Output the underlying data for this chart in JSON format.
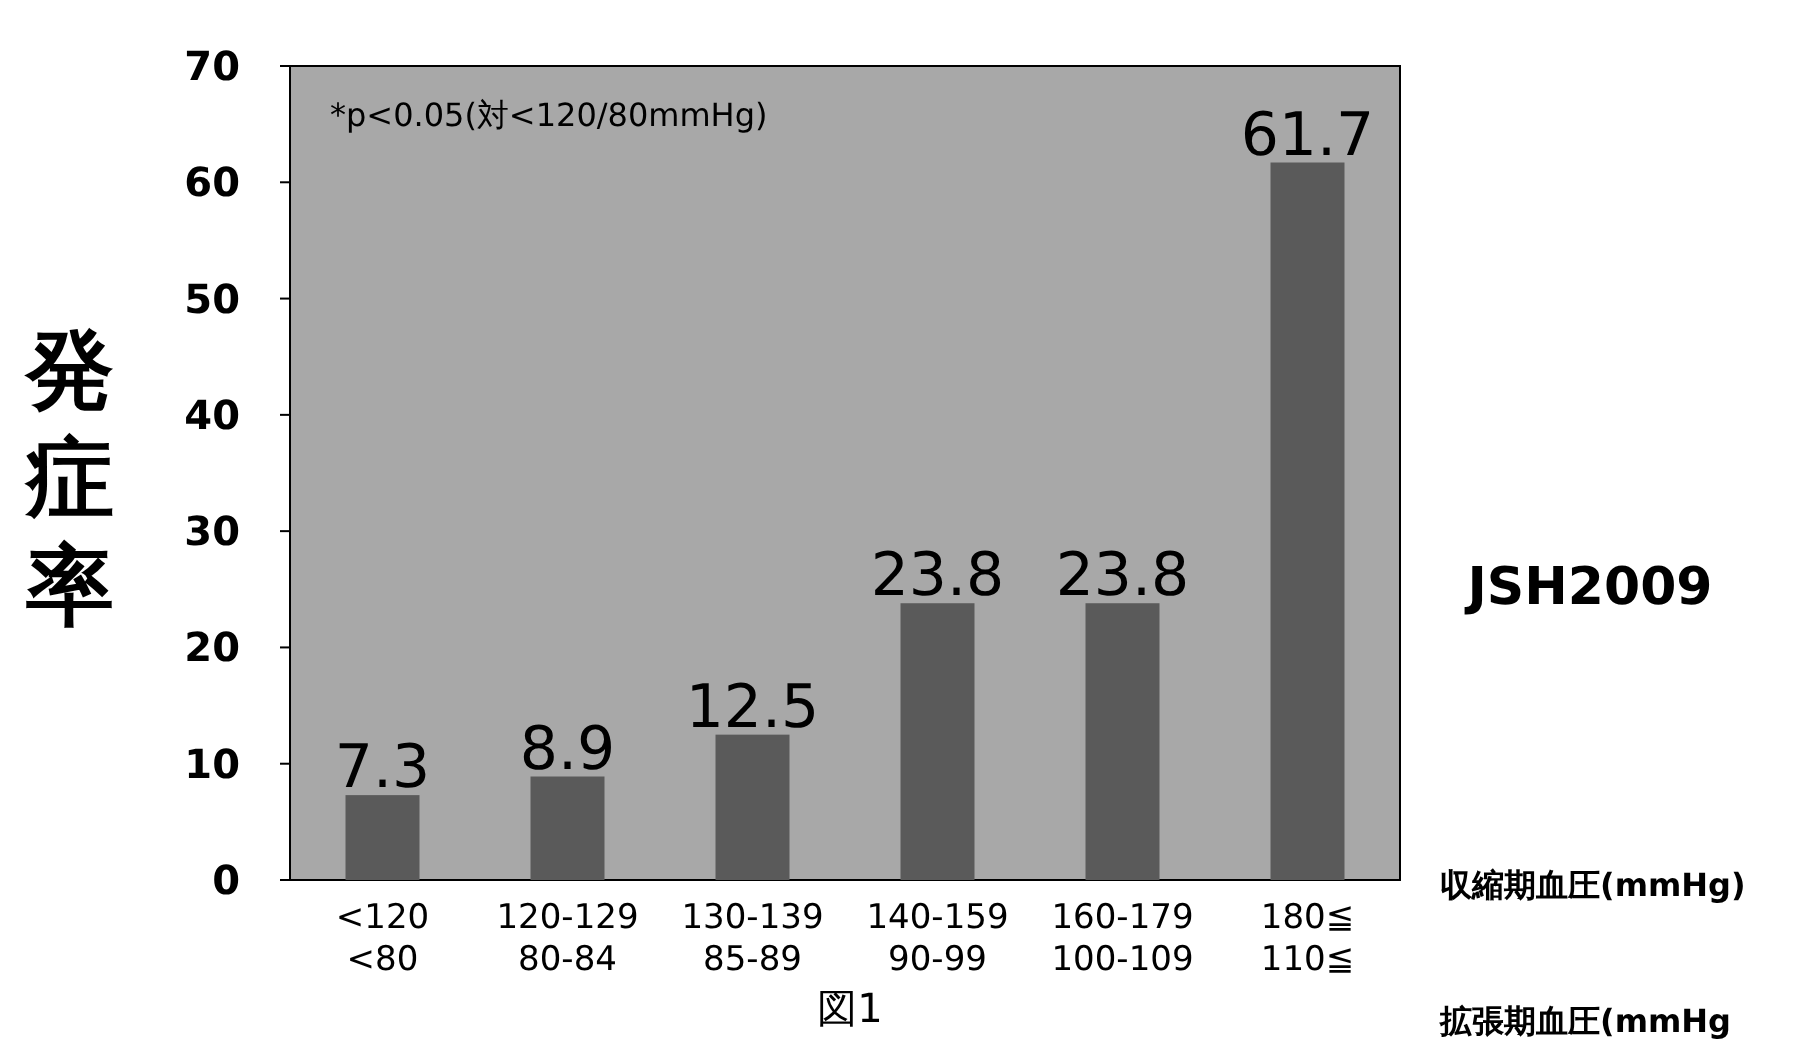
{
  "chart_data": {
    "type": "bar",
    "ylabel": "発症率",
    "categories": [
      "<120\n<80",
      "120-129\n80-84",
      "130-139\n85-89",
      "140-159\n90-99",
      "160-179\n100-109",
      "180≦\n110≦"
    ],
    "values": [
      7.3,
      8.9,
      12.5,
      23.8,
      23.8,
      61.7
    ],
    "color": "#5a5a5a",
    "data_labels": true,
    "ylim": [
      0,
      70
    ],
    "yticks": [
      0,
      10,
      20,
      30,
      40,
      50,
      60,
      70
    ],
    "grid": false,
    "annotations": [
      "*p<0.05(対<120/80mmHg)",
      "JSH2009",
      "収縮期血圧(mmHg)",
      "拡張期血圧(mmHg",
      "図1"
    ]
  }
}
